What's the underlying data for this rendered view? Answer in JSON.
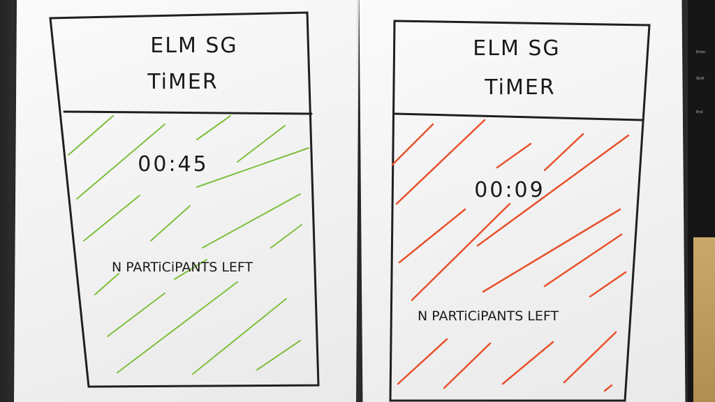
{
  "mockups": [
    {
      "title_line1": "ELM SG",
      "title_line2": "TiMER",
      "time": "00:45",
      "participants_text": "N PARTiCiPANTS LEFT",
      "hatch_color": "#7dbf3c"
    },
    {
      "title_line1": "ELM SG",
      "title_line2": "TiMER",
      "time": "00:09",
      "participants_text": "N PARTiCiPANTS LEFT",
      "hatch_color": "#e8502a"
    }
  ],
  "backdrop_key_labels": [
    "Enter",
    "Shift",
    "End"
  ]
}
